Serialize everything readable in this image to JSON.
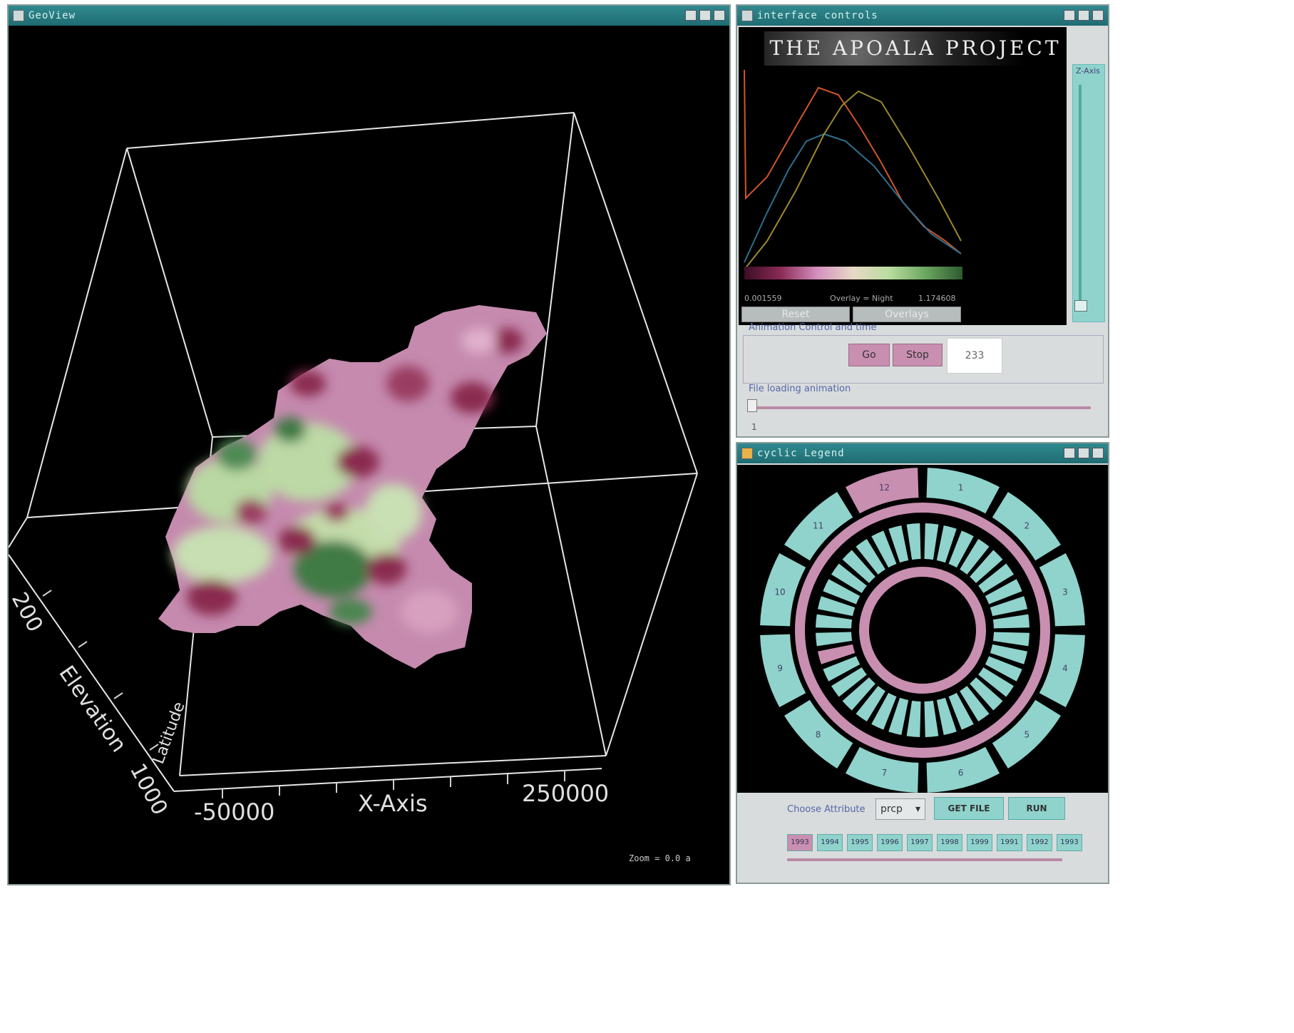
{
  "geoview": {
    "title": "GeoView",
    "axis_title": "X-Axis",
    "tick_left": "-50000",
    "tick_right": "250000",
    "side_labels": [
      "200",
      "Elevation",
      "1000",
      "Latitude"
    ],
    "status": "Zoom = 0.0 a"
  },
  "interface": {
    "title": "interface controls",
    "logo": "THE APOALA PROJECT",
    "range_min": "0.001559",
    "range_label": "Overlay = Night",
    "range_max": "1.174608",
    "button_reset": "Reset",
    "button_overlays": "Overlays",
    "slider_label": "Z-Axis",
    "anim_label": "Animation Control and time",
    "anim_play": "Go",
    "anim_stop": "Stop",
    "anim_value": "233",
    "file_label": "File loading animation",
    "file_value": "1"
  },
  "legend": {
    "title": "cyclic Legend",
    "outer_labels": [
      "1",
      "2",
      "3",
      "4",
      "5",
      "6",
      "7",
      "8",
      "9",
      "10",
      "11",
      "12"
    ],
    "choose_label": "Choose Attribute",
    "select_value": "prcp",
    "get_file": "GET FILE",
    "run": "RUN",
    "years": [
      "1993",
      "1994",
      "1995",
      "1996",
      "1997",
      "1998",
      "1999",
      "1991",
      "1992",
      "1993"
    ]
  },
  "colors": {
    "pink": "#c98fb0",
    "teal": "#8fd3cc",
    "titlebar": "#1f6c72"
  }
}
